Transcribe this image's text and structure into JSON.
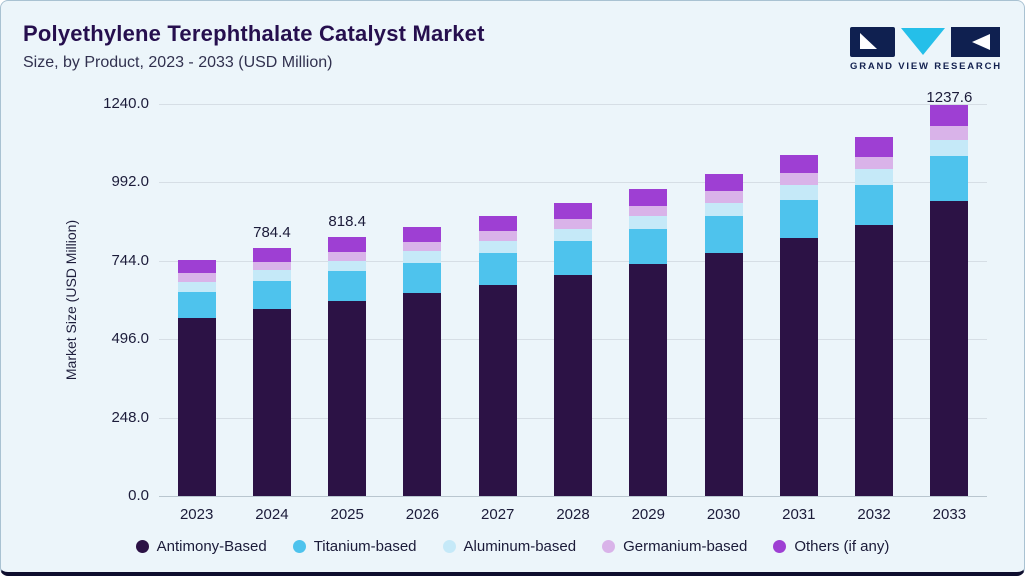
{
  "header": {
    "title": "Polyethylene Terephthalate Catalyst Market",
    "subtitle": "Size, by Product, 2023 - 2033 (USD Million)",
    "logo_text": "GRAND VIEW RESEARCH"
  },
  "chart_data": {
    "type": "bar",
    "stacked": true,
    "title": "Polyethylene Terephthalate Catalyst Market",
    "subtitle": "Size, by Product, 2023 - 2033 (USD Million)",
    "xlabel": "",
    "ylabel": "Market Size (USD Million)",
    "ylim": [
      0,
      1240
    ],
    "yticks": [
      "0.0",
      "248.0",
      "496.0",
      "744.0",
      "992.0",
      "1240.0"
    ],
    "grid": true,
    "legend_position": "bottom",
    "categories": [
      "2023",
      "2024",
      "2025",
      "2026",
      "2027",
      "2028",
      "2029",
      "2030",
      "2031",
      "2032",
      "2033"
    ],
    "series": [
      {
        "name": "Antimony-Based",
        "color": "#2c1245",
        "values": [
          562.5,
          592.2,
          617.9,
          641.8,
          668.9,
          700.6,
          733.9,
          770.1,
          815.4,
          856.9,
          934.4
        ]
      },
      {
        "name": "Titanium-based",
        "color": "#4ec3ed",
        "values": [
          84.2,
          88.6,
          92.5,
          96.1,
          100.1,
          104.9,
          109.8,
          115.3,
          122.0,
          128.3,
          139.8
        ]
      },
      {
        "name": "Aluminum-based",
        "color": "#c5e9f8",
        "values": [
          31.3,
          32.9,
          34.4,
          35.7,
          37.2,
          39.0,
          40.8,
          42.8,
          45.4,
          47.7,
          52.0
        ]
      },
      {
        "name": "Germanium-based",
        "color": "#d9b3e9",
        "values": [
          26.1,
          27.5,
          28.6,
          29.8,
          31.0,
          32.5,
          34.0,
          35.7,
          37.8,
          39.7,
          43.3
        ]
      },
      {
        "name": "Others (if any)",
        "color": "#9e3fd3",
        "values": [
          41.0,
          43.1,
          45.0,
          46.8,
          48.7,
          51.0,
          53.5,
          56.1,
          59.4,
          62.4,
          68.1
        ]
      }
    ],
    "totals": [
      745.1,
      784.4,
      818.4,
      850.2,
      885.9,
      928.0,
      972.0,
      1020.0,
      1080.0,
      1135.0,
      1237.6
    ],
    "visible_total_labels": {
      "2024": "784.4",
      "2025": "818.4",
      "2033": "1237.6"
    }
  }
}
